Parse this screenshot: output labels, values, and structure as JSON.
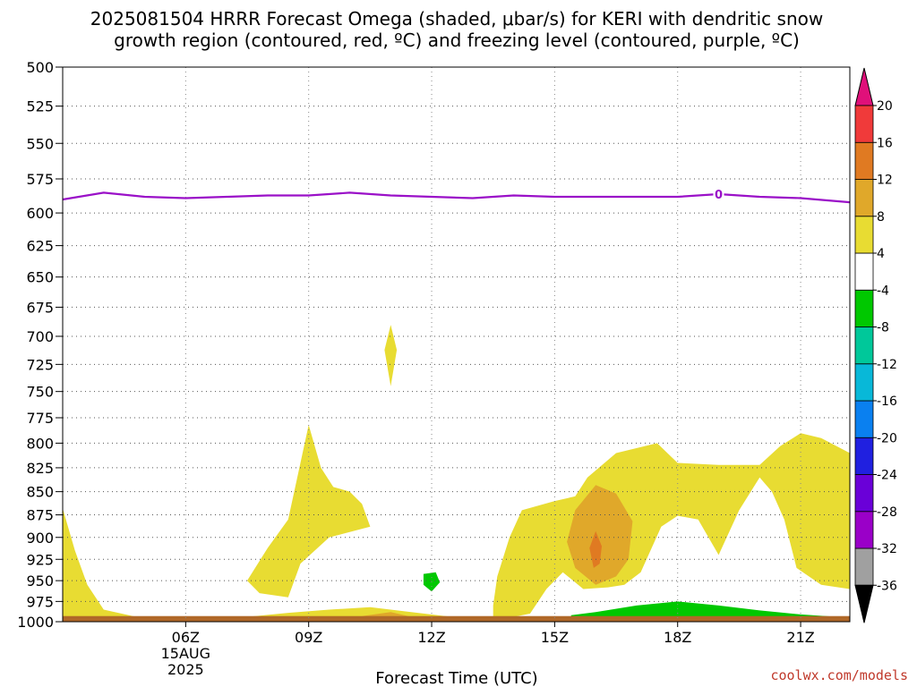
{
  "chart_data": {
    "type": "heatmap",
    "title_lines": [
      "2025081504 HRRR Forecast Omega (shaded, μbar/s) for KERI with dendritic snow",
      "growth region (contoured, red, ºC) and freezing level (contoured, purple, ºC)"
    ],
    "xlabel": "Forecast Time (UTC)",
    "x_range_hours": [
      3,
      22.2
    ],
    "x_ticks": [
      {
        "hour": 6,
        "label": "06Z",
        "sub": [
          "15AUG",
          "2025"
        ]
      },
      {
        "hour": 9,
        "label": "09Z"
      },
      {
        "hour": 12,
        "label": "12Z"
      },
      {
        "hour": 15,
        "label": "15Z"
      },
      {
        "hour": 18,
        "label": "18Z"
      },
      {
        "hour": 21,
        "label": "21Z"
      }
    ],
    "y_axis": {
      "unit": "hPa",
      "scale": "log-pressure",
      "range": [
        1000,
        500
      ],
      "ticks": [
        500,
        525,
        550,
        575,
        600,
        625,
        650,
        675,
        700,
        725,
        750,
        775,
        800,
        825,
        850,
        875,
        900,
        925,
        950,
        975,
        1000
      ]
    },
    "grid": true,
    "colorbar": {
      "levels": [
        -36,
        -32,
        -28,
        -24,
        -20,
        -16,
        -12,
        -8,
        -4,
        4,
        8,
        12,
        16,
        20
      ],
      "level_labels": [
        "-36",
        "-32",
        "-28",
        "-24",
        "-20",
        "-16",
        "-12",
        "-8",
        "-4",
        "4",
        "8",
        "12",
        "16",
        "20"
      ],
      "bin_colors": [
        "#a0a0a0",
        "#9a00c8",
        "#6a00d8",
        "#2020e0",
        "#0a80f0",
        "#08b8d8",
        "#00c89a",
        "#00c800",
        "#ffffff",
        "#e8dc32",
        "#e0a82a",
        "#e07a22",
        "#f03a3a"
      ],
      "under_color": "#000000",
      "over_color": "#e0107a"
    },
    "freezing_level": {
      "label": "0",
      "color": "#9a10c8",
      "points": [
        {
          "hour": 3.0,
          "p": 590
        },
        {
          "hour": 4.0,
          "p": 585
        },
        {
          "hour": 5.0,
          "p": 588
        },
        {
          "hour": 6.0,
          "p": 589
        },
        {
          "hour": 7.0,
          "p": 588
        },
        {
          "hour": 8.0,
          "p": 587
        },
        {
          "hour": 9.0,
          "p": 587
        },
        {
          "hour": 10.0,
          "p": 585
        },
        {
          "hour": 11.0,
          "p": 587
        },
        {
          "hour": 12.0,
          "p": 588
        },
        {
          "hour": 13.0,
          "p": 589
        },
        {
          "hour": 14.0,
          "p": 587
        },
        {
          "hour": 15.0,
          "p": 588
        },
        {
          "hour": 16.0,
          "p": 588
        },
        {
          "hour": 17.0,
          "p": 588
        },
        {
          "hour": 18.0,
          "p": 588
        },
        {
          "hour": 19.0,
          "p": 586
        },
        {
          "hour": 20.0,
          "p": 588
        },
        {
          "hour": 21.0,
          "p": 589
        },
        {
          "hour": 22.2,
          "p": 592
        }
      ],
      "label_at_hour": 19
    },
    "omega_regions": [
      {
        "level_bin": "4 to 8",
        "color": "#e8dc32",
        "polygon": [
          [
            3.0,
            868
          ],
          [
            3.3,
            915
          ],
          [
            3.6,
            955
          ],
          [
            4.0,
            985
          ],
          [
            4.8,
            994
          ],
          [
            5.5,
            996
          ],
          [
            6.0,
            996
          ],
          [
            7.5,
            994
          ],
          [
            8.5,
            989
          ],
          [
            9.5,
            985
          ],
          [
            10.5,
            982
          ],
          [
            11.5,
            988
          ],
          [
            12.5,
            994
          ],
          [
            13.5,
            995
          ],
          [
            13.5,
            980
          ],
          [
            13.6,
            945
          ],
          [
            13.9,
            900
          ],
          [
            14.2,
            870
          ],
          [
            15.0,
            860
          ],
          [
            15.5,
            855
          ],
          [
            15.8,
            835
          ],
          [
            16.5,
            810
          ],
          [
            17.5,
            800
          ],
          [
            18.0,
            820
          ],
          [
            19.0,
            822
          ],
          [
            20.0,
            822
          ],
          [
            20.5,
            803
          ],
          [
            21.0,
            790
          ],
          [
            21.5,
            795
          ],
          [
            22.2,
            810
          ],
          [
            22.2,
            960
          ],
          [
            21.5,
            955
          ],
          [
            20.9,
            935
          ],
          [
            20.6,
            880
          ],
          [
            20.3,
            850
          ],
          [
            20.0,
            835
          ],
          [
            19.5,
            870
          ],
          [
            19.0,
            920
          ],
          [
            18.5,
            880
          ],
          [
            18.0,
            876
          ],
          [
            17.6,
            888
          ],
          [
            17.1,
            940
          ],
          [
            16.7,
            955
          ],
          [
            16.3,
            958
          ],
          [
            15.7,
            960
          ],
          [
            15.2,
            940
          ],
          [
            14.8,
            960
          ],
          [
            14.4,
            990
          ],
          [
            14.0,
            994
          ],
          [
            14.2,
            998
          ],
          [
            3.0,
            998
          ]
        ]
      },
      {
        "level_bin": "4 to 8",
        "color": "#e8dc32",
        "polygon": [
          [
            7.5,
            950
          ],
          [
            8.0,
            912
          ],
          [
            8.5,
            880
          ],
          [
            9.0,
            782
          ],
          [
            9.3,
            825
          ],
          [
            9.6,
            845
          ],
          [
            10.0,
            850
          ],
          [
            10.3,
            863
          ],
          [
            10.5,
            888
          ],
          [
            9.5,
            900
          ],
          [
            8.8,
            930
          ],
          [
            8.5,
            970
          ],
          [
            7.8,
            965
          ]
        ]
      },
      {
        "level_bin": "4 to 8",
        "color": "#e8dc32",
        "polygon": [
          [
            11.0,
            690
          ],
          [
            11.15,
            712
          ],
          [
            11.0,
            745
          ],
          [
            10.85,
            712
          ]
        ]
      },
      {
        "level_bin": "8 to 12",
        "color": "#e0a82a",
        "polygon": [
          [
            16.0,
            843
          ],
          [
            16.5,
            852
          ],
          [
            16.9,
            882
          ],
          [
            16.8,
            925
          ],
          [
            16.5,
            945
          ],
          [
            16.0,
            955
          ],
          [
            15.5,
            935
          ],
          [
            15.3,
            905
          ],
          [
            15.5,
            870
          ]
        ]
      },
      {
        "level_bin": "12 to 16",
        "color": "#e07a22",
        "polygon": [
          [
            16.0,
            893
          ],
          [
            16.15,
            910
          ],
          [
            16.1,
            930
          ],
          [
            15.95,
            935
          ],
          [
            15.85,
            912
          ]
        ]
      },
      {
        "level_bin": "8 to 12",
        "color": "#e0a82a",
        "polygon": [
          [
            10.3,
            993
          ],
          [
            11.0,
            988
          ],
          [
            11.6,
            995
          ],
          [
            10.8,
            997
          ]
        ]
      },
      {
        "level_bin": "-8 to -4",
        "color": "#00c800",
        "polygon": [
          [
            11.8,
            942
          ],
          [
            12.1,
            940
          ],
          [
            12.2,
            952
          ],
          [
            12.0,
            963
          ],
          [
            11.8,
            955
          ]
        ]
      },
      {
        "level_bin": "-8 to -4",
        "color": "#00c800",
        "polygon": [
          [
            15.4,
            992
          ],
          [
            16.0,
            988
          ],
          [
            17.0,
            980
          ],
          [
            18.0,
            975
          ],
          [
            19.0,
            980
          ],
          [
            20.0,
            986
          ],
          [
            21.0,
            991
          ],
          [
            22.2,
            995
          ],
          [
            22.2,
            998
          ],
          [
            15.4,
            998
          ]
        ]
      }
    ],
    "surface_band": {
      "color": "#b06828",
      "p_top": 993,
      "p_bottom": 1000
    }
  },
  "credit": "coolwx.com/models"
}
